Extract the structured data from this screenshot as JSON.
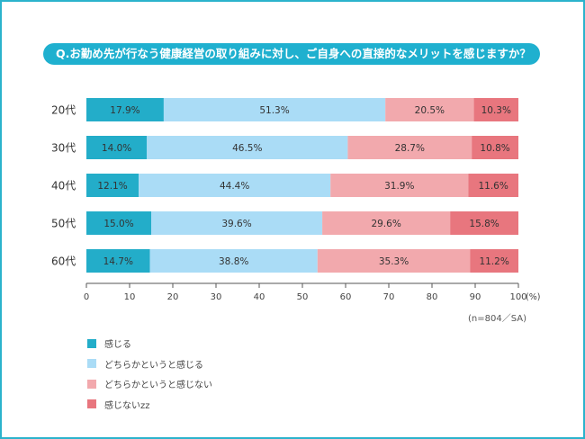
{
  "question": "Q.お勤め先が行なう健康経営の取り組みに対し、ご自身への直接的なメリットを感じますか？",
  "note": "(n=804／SA)",
  "colors": {
    "border": "#2bb3cc",
    "header": "#1fb0cf",
    "feel": "#23adc9",
    "somewhat_feel": "#aadcf6",
    "somewhat_not": "#f2a9ad",
    "not_feel": "#e8767e"
  },
  "legend": [
    {
      "label": "感じる",
      "color": "#23adc9"
    },
    {
      "label": "どちらかというと感じる",
      "color": "#aadcf6"
    },
    {
      "label": "どちらかというと感じない",
      "color": "#f2a9ad"
    },
    {
      "label": "感じないzz",
      "color": "#e8767e"
    }
  ],
  "chart_data": {
    "type": "bar",
    "orientation": "horizontal",
    "stacked": true,
    "categories": [
      "20代",
      "30代",
      "40代",
      "50代",
      "60代"
    ],
    "series": [
      {
        "name": "感じる",
        "values": [
          17.9,
          14.0,
          12.1,
          15.0,
          14.7
        ],
        "labels": [
          "17.9%",
          "14.0%",
          "12.1%",
          "15.0%",
          "14.7%"
        ]
      },
      {
        "name": "どちらかというと感じる",
        "values": [
          51.3,
          46.5,
          44.4,
          39.6,
          38.8
        ],
        "labels": [
          "51.3%",
          "46.5%",
          "44.4%",
          "39.6%",
          "38.8%"
        ]
      },
      {
        "name": "どちらかというと感じない",
        "values": [
          20.5,
          28.7,
          31.9,
          29.6,
          35.3
        ],
        "labels": [
          "20.5%",
          "28.7%",
          "31.9%",
          "29.6%",
          "35.3%"
        ]
      },
      {
        "name": "感じないzz",
        "values": [
          10.3,
          10.8,
          11.6,
          15.8,
          11.2
        ],
        "labels": [
          "10.3%",
          "10.8%",
          "11.6%",
          "15.8%",
          "11.2%"
        ]
      }
    ],
    "xlim": [
      0,
      100
    ],
    "xticks": [
      0,
      10,
      20,
      30,
      40,
      50,
      60,
      70,
      80,
      90,
      100
    ],
    "xtick_labels": [
      "0",
      "10",
      "20",
      "30",
      "40",
      "50",
      "60",
      "70",
      "80",
      "90",
      "100"
    ],
    "xunit": "(%)"
  }
}
